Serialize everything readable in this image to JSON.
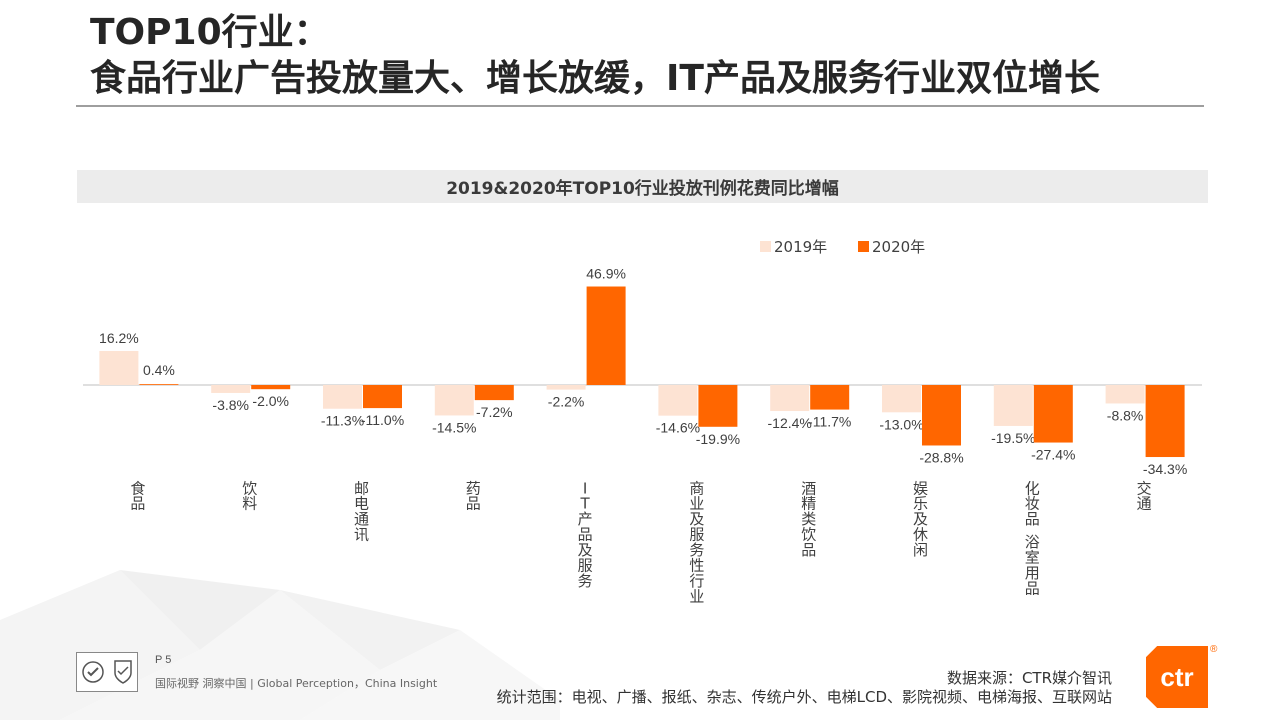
{
  "page": {
    "title_line1": "TOP10行业：",
    "title_line2": "食品行业广告投放量大、增长放缓，IT产品及服务行业双位增长",
    "page_number": "P 5",
    "slogan": "国际视野  洞察中国 |  Global Perception，China Insight",
    "source": "数据来源：CTR媒介智讯",
    "scope": "统计范围：电视、广播、报纸、杂志、传统户外、电梯LCD、影院视频、电梯海报、互联网站",
    "brand": "ctr",
    "brand_mark": "®",
    "colors": {
      "series_2019": "#fde3d3",
      "series_2020": "#ff6600",
      "accent": "#ff6600"
    }
  },
  "chart_data": {
    "type": "bar",
    "title": "2019&2020年TOP10行业投放刊例花费同比增幅",
    "categories": [
      "食品",
      "饮料",
      "邮电通讯",
      "药品",
      "IT产品及服务",
      "商业及服务性行业",
      "酒精类饮品",
      "娱乐及休闲",
      "化妆品/浴室用品",
      "交通"
    ],
    "category_labels": [
      "食品",
      "饮料",
      "邮电通讯",
      "药品",
      "IT产品及服务",
      "商业及服务性行业",
      "酒精类饮品",
      "娱乐及休闲",
      "化妆品 浴室用品",
      "交通"
    ],
    "series": [
      {
        "name": "2019年",
        "values": [
          16.2,
          -3.8,
          -11.3,
          -14.5,
          -2.2,
          -14.6,
          -12.4,
          -13.0,
          -19.5,
          -8.8
        ],
        "labels": [
          "16.2%",
          "-3.8%",
          "-11.3%",
          "-14.5%",
          "-2.2%",
          "-14.6%",
          "-12.4%",
          "-13.0%",
          "-19.5%",
          "-8.8%"
        ]
      },
      {
        "name": "2020年",
        "values": [
          0.4,
          -2.0,
          -11.0,
          -7.2,
          46.9,
          -19.9,
          -11.7,
          -28.8,
          -27.4,
          -34.3
        ],
        "labels": [
          "0.4%",
          "-2.0%",
          "-11.0%",
          "-7.2%",
          "46.9%",
          "-19.9%",
          "-11.7%",
          "-28.8%",
          "-27.4%",
          "-34.3%"
        ]
      }
    ],
    "legend_position": "top-right",
    "grid": false
  }
}
